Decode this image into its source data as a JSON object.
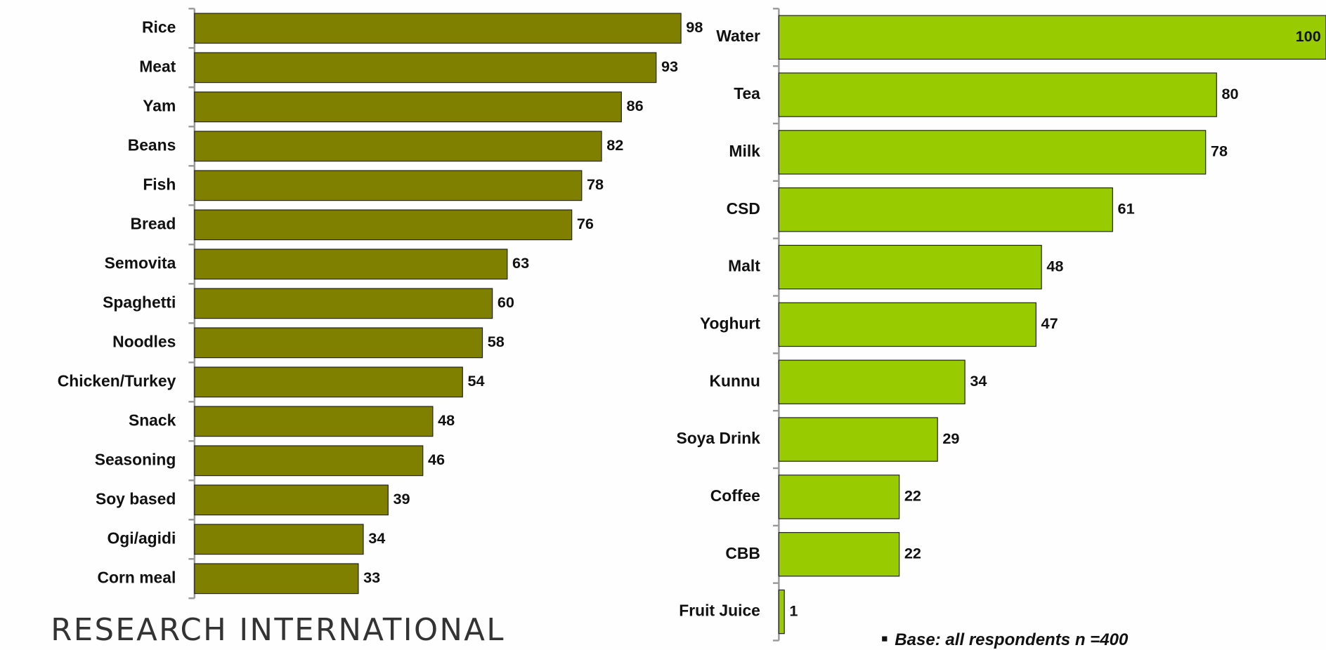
{
  "chart_data": [
    {
      "type": "bar",
      "orientation": "horizontal",
      "color": "#808000",
      "categories": [
        "Rice",
        "Meat",
        "Yam",
        "Beans",
        "Fish",
        "Bread",
        "Semovita",
        "Spaghetti",
        "Noodles",
        "Chicken/Turkey",
        "Snack",
        "Seasoning",
        "Soy based",
        "Ogi/agidi",
        "Corn meal"
      ],
      "values": [
        98,
        93,
        86,
        82,
        78,
        76,
        63,
        60,
        58,
        54,
        48,
        46,
        39,
        34,
        33
      ],
      "xlim": [
        0,
        100
      ]
    },
    {
      "type": "bar",
      "orientation": "horizontal",
      "color": "#99cc00",
      "categories": [
        "Water",
        "Tea",
        "Milk",
        "CSD",
        "Malt",
        "Yoghurt",
        "Kunnu",
        "Soya Drink",
        "Coffee",
        "CBB",
        "Fruit Juice"
      ],
      "values": [
        100,
        80,
        78,
        61,
        48,
        47,
        34,
        29,
        22,
        22,
        1
      ],
      "xlim": [
        0,
        100
      ]
    }
  ],
  "logo": "RESEARCH INTERNATIONAL",
  "note": "Base: all respondents n =400"
}
